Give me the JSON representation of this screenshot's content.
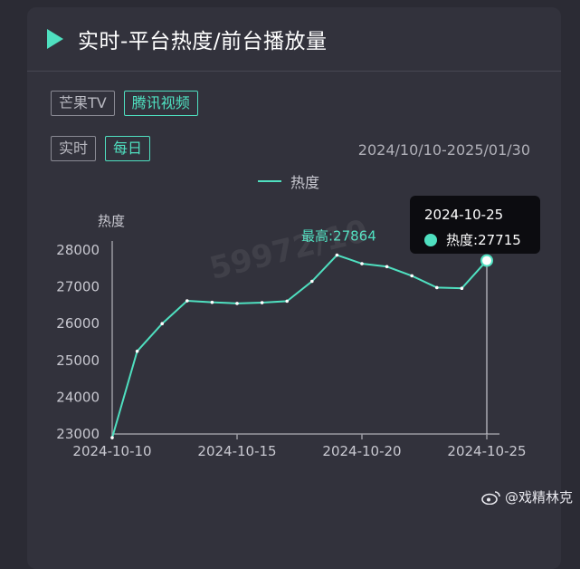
{
  "header": {
    "title": "实时-平台热度/前台播放量"
  },
  "platform_tabs": [
    {
      "label": "芒果TV",
      "active": false
    },
    {
      "label": "腾讯视频",
      "active": true
    }
  ],
  "mode_tabs": [
    {
      "label": "实时",
      "active": false
    },
    {
      "label": "每日",
      "active": true
    }
  ],
  "date_range": "2024/10/10-2025/01/30",
  "tooltip": {
    "date": "2024-10-25",
    "series": "热度",
    "value_text": "27715"
  },
  "watermark": "59972/10",
  "credit": "@戏精林克",
  "colors": {
    "accent": "#4fe0c0",
    "background": "#2b2b34",
    "card": "#32323c"
  },
  "chart_data": {
    "type": "line",
    "ylabel": "热度",
    "legend": "热度",
    "y_ticks": [
      23000,
      24000,
      25000,
      26000,
      27000,
      28000
    ],
    "ylim": [
      23000,
      28000
    ],
    "x_ticks": [
      "2024-10-10",
      "2024-10-15",
      "2024-10-20",
      "2024-10-25"
    ],
    "series": [
      {
        "name": "热度",
        "x": [
          "2024-10-10",
          "2024-10-11",
          "2024-10-12",
          "2024-10-13",
          "2024-10-14",
          "2024-10-15",
          "2024-10-16",
          "2024-10-17",
          "2024-10-18",
          "2024-10-19",
          "2024-10-20",
          "2024-10-21",
          "2024-10-22",
          "2024-10-23",
          "2024-10-24",
          "2024-10-25"
        ],
        "values": [
          22900,
          25250,
          26000,
          26620,
          26580,
          26550,
          26570,
          26610,
          27150,
          27864,
          27630,
          27550,
          27300,
          26980,
          26960,
          27715
        ]
      }
    ],
    "annotation": {
      "label": "最高:27864",
      "x": "2024-10-19"
    },
    "highlight": {
      "x": "2024-10-25"
    },
    "grid": false
  }
}
